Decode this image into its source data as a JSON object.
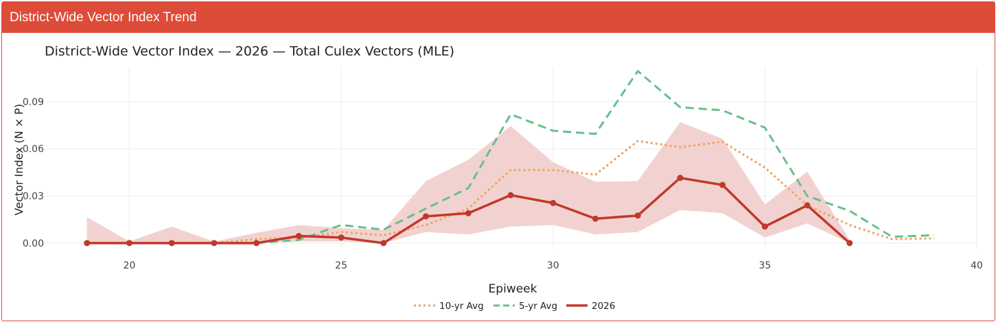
{
  "card": {
    "title": "District-Wide Vector Index Trend"
  },
  "chart_data": {
    "type": "line",
    "title": "District-Wide Vector Index — 2026 — Total Culex Vectors (MLE)",
    "xlabel": "Epiweek",
    "ylabel": "Vector Index (N × P)",
    "xlim": [
      18,
      40
    ],
    "ylim": [
      -0.004,
      0.112
    ],
    "xticks": [
      20,
      25,
      30,
      35,
      40
    ],
    "yticks": [
      0,
      0.03,
      0.06,
      0.09
    ],
    "ytick_labels": [
      "0.00",
      "0.03",
      "0.06",
      "0.09"
    ],
    "grid": true,
    "legend_position": "bottom-center",
    "band": {
      "x": [
        19,
        20,
        21,
        22,
        23,
        24,
        25,
        26,
        27,
        28,
        29,
        30,
        31,
        32,
        33,
        34,
        35,
        36,
        37
      ],
      "lower": [
        0,
        0,
        0,
        0,
        0,
        0.001,
        0.001,
        0,
        0.007,
        0.0055,
        0.0105,
        0.0115,
        0.0055,
        0.007,
        0.021,
        0.019,
        0.0035,
        0.0125,
        0
      ],
      "upper": [
        0.0165,
        0.001,
        0.0105,
        0.001,
        0.0065,
        0.0115,
        0.0095,
        0.0085,
        0.0395,
        0.053,
        0.0745,
        0.0515,
        0.039,
        0.0395,
        0.077,
        0.0665,
        0.0245,
        0.0455,
        0.002
      ],
      "color": "#f2d2d0"
    },
    "series": [
      {
        "name": "10-yr Avg",
        "style": "dotted",
        "color": "#f0a15c",
        "x": [
          19,
          20,
          21,
          22,
          23,
          24,
          25,
          26,
          27,
          28,
          29,
          30,
          31,
          32,
          33,
          34,
          35,
          36,
          37,
          38,
          39
        ],
        "values": [
          0,
          0,
          0,
          0,
          0.0025,
          0.0035,
          0.007,
          0.005,
          0.0115,
          0.022,
          0.0465,
          0.0465,
          0.0435,
          0.065,
          0.061,
          0.0645,
          0.048,
          0.024,
          0.0115,
          0.0025,
          0.003
        ]
      },
      {
        "name": "5-yr Avg",
        "style": "dashed",
        "color": "#66c08a",
        "x": [
          19,
          20,
          21,
          22,
          23,
          24,
          25,
          26,
          27,
          28,
          29,
          30,
          31,
          32,
          33,
          34,
          35,
          36,
          37,
          38,
          39
        ],
        "values": [
          0,
          0,
          0,
          0,
          0,
          0.002,
          0.0115,
          0.0085,
          0.022,
          0.035,
          0.082,
          0.0715,
          0.0695,
          0.1095,
          0.0865,
          0.0845,
          0.0735,
          0.03,
          0.0205,
          0.004,
          0.005
        ]
      },
      {
        "name": "2026",
        "style": "solid",
        "color": "#c0392b",
        "markers": true,
        "x": [
          19,
          20,
          21,
          22,
          23,
          24,
          25,
          26,
          27,
          28,
          29,
          30,
          31,
          32,
          33,
          34,
          35,
          36,
          37
        ],
        "values": [
          0,
          0,
          0,
          0,
          0,
          0.0045,
          0.0035,
          0,
          0.017,
          0.019,
          0.0305,
          0.0255,
          0.0155,
          0.0175,
          0.0415,
          0.037,
          0.0105,
          0.024,
          0
        ]
      }
    ]
  }
}
